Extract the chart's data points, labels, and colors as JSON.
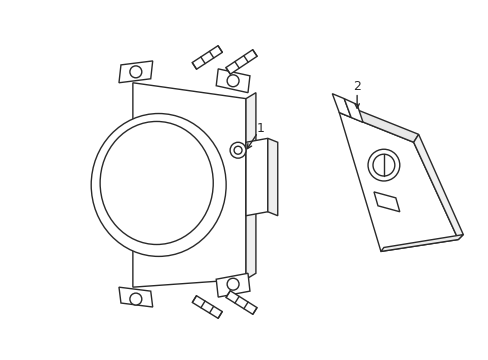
{
  "background_color": "#ffffff",
  "line_color": "#2a2a2a",
  "line_width": 1.0,
  "label1": "1",
  "label2": "2",
  "figsize": [
    4.89,
    3.6
  ],
  "dpi": 100
}
